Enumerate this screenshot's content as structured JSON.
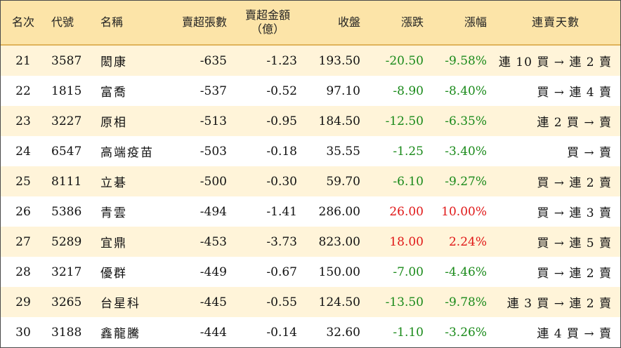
{
  "headers": {
    "rank": "名次",
    "code": "代號",
    "name": "名稱",
    "net_sell_sheets": "賣超張數",
    "net_sell_amount_l1": "賣超金額",
    "net_sell_amount_l2": "（億）",
    "close": "收盤",
    "change": "漲跌",
    "change_pct": "漲幅",
    "streak": "連賣天數"
  },
  "colors": {
    "header_bg": "#fce4a8",
    "alt_row_bg": "#fff4d9",
    "down": "#1a8a1a",
    "up": "#e01818"
  },
  "rows": [
    {
      "rank": "21",
      "code": "3587",
      "name": "閎康",
      "sheets": "-635",
      "amount": "-1.23",
      "close": "193.50",
      "change": "-20.50",
      "pct": "-9.58%",
      "dir": "down",
      "streak": "連 10 買 → 連 2 賣"
    },
    {
      "rank": "22",
      "code": "1815",
      "name": "富喬",
      "sheets": "-537",
      "amount": "-0.52",
      "close": "97.10",
      "change": "-8.90",
      "pct": "-8.40%",
      "dir": "down",
      "streak": "買 → 連 4 賣"
    },
    {
      "rank": "23",
      "code": "3227",
      "name": "原相",
      "sheets": "-513",
      "amount": "-0.95",
      "close": "184.50",
      "change": "-12.50",
      "pct": "-6.35%",
      "dir": "down",
      "streak": "連 2 買 → 賣"
    },
    {
      "rank": "24",
      "code": "6547",
      "name": "高端疫苗",
      "sheets": "-503",
      "amount": "-0.18",
      "close": "35.55",
      "change": "-1.25",
      "pct": "-3.40%",
      "dir": "down",
      "streak": "買 → 賣"
    },
    {
      "rank": "25",
      "code": "8111",
      "name": "立碁",
      "sheets": "-500",
      "amount": "-0.30",
      "close": "59.70",
      "change": "-6.10",
      "pct": "-9.27%",
      "dir": "down",
      "streak": "買 → 連 2 賣"
    },
    {
      "rank": "26",
      "code": "5386",
      "name": "青雲",
      "sheets": "-494",
      "amount": "-1.41",
      "close": "286.00",
      "change": "26.00",
      "pct": "10.00%",
      "dir": "up",
      "streak": "買 → 連 3 賣"
    },
    {
      "rank": "27",
      "code": "5289",
      "name": "宜鼎",
      "sheets": "-453",
      "amount": "-3.73",
      "close": "823.00",
      "change": "18.00",
      "pct": "2.24%",
      "dir": "up",
      "streak": "買 → 連 5 賣"
    },
    {
      "rank": "28",
      "code": "3217",
      "name": "優群",
      "sheets": "-449",
      "amount": "-0.67",
      "close": "150.00",
      "change": "-7.00",
      "pct": "-4.46%",
      "dir": "down",
      "streak": "買 → 連 2 賣"
    },
    {
      "rank": "29",
      "code": "3265",
      "name": "台星科",
      "sheets": "-445",
      "amount": "-0.55",
      "close": "124.50",
      "change": "-13.50",
      "pct": "-9.78%",
      "dir": "down",
      "streak": "連 3 買 → 連 2 賣"
    },
    {
      "rank": "30",
      "code": "3188",
      "name": "鑫龍騰",
      "sheets": "-444",
      "amount": "-0.14",
      "close": "32.60",
      "change": "-1.10",
      "pct": "-3.26%",
      "dir": "down",
      "streak": "連 4 買 → 賣"
    }
  ]
}
